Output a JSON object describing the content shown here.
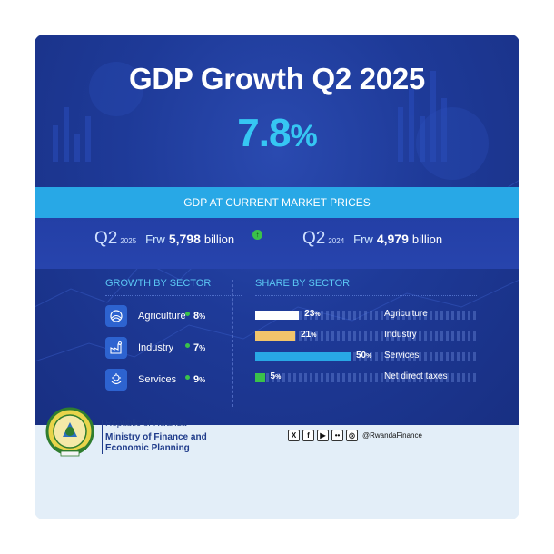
{
  "title": "GDP Growth Q2 2025",
  "growth": {
    "value": "7.8",
    "unit": "%"
  },
  "market": {
    "heading": "GDP AT CURRENT MARKET PRICES",
    "current": {
      "quarter": "Q2",
      "year": "2025",
      "currency": "Frw",
      "amount": "5,798",
      "unit": "billion"
    },
    "previous": {
      "quarter": "Q2",
      "year": "2024",
      "currency": "Frw",
      "amount": "4,979",
      "unit": "billion"
    }
  },
  "growth_by_sector": {
    "heading": "GROWTH BY SECTOR",
    "items": [
      {
        "name": "Agriculture",
        "value": "8",
        "unit": "%",
        "icon": "agriculture-icon"
      },
      {
        "name": "Industry",
        "value": "7",
        "unit": "%",
        "icon": "industry-icon"
      },
      {
        "name": "Services",
        "value": "9",
        "unit": "%",
        "icon": "services-icon"
      }
    ]
  },
  "share_by_sector": {
    "heading": "SHARE BY SECTOR",
    "items": [
      {
        "name": "Agriculture",
        "value": "23",
        "unit": "%",
        "share": 23,
        "color": "#ffffff"
      },
      {
        "name": "Industry",
        "value": "21",
        "unit": "%",
        "share": 21,
        "color": "#f2c46b"
      },
      {
        "name": "Services",
        "value": "50",
        "unit": "%",
        "share": 50,
        "color": "#28a8e6"
      },
      {
        "name": "Net direct taxes",
        "value": "5",
        "unit": "%",
        "share": 5,
        "color": "#3ac24a"
      }
    ]
  },
  "footer": {
    "republic": "Republic of Rwanda",
    "ministry_line1": "Ministry of Finance and",
    "ministry_line2": "Economic Planning",
    "handle": "@RwandaFinance",
    "socials": [
      "X",
      "f",
      "▶",
      "••",
      "◎"
    ]
  }
}
